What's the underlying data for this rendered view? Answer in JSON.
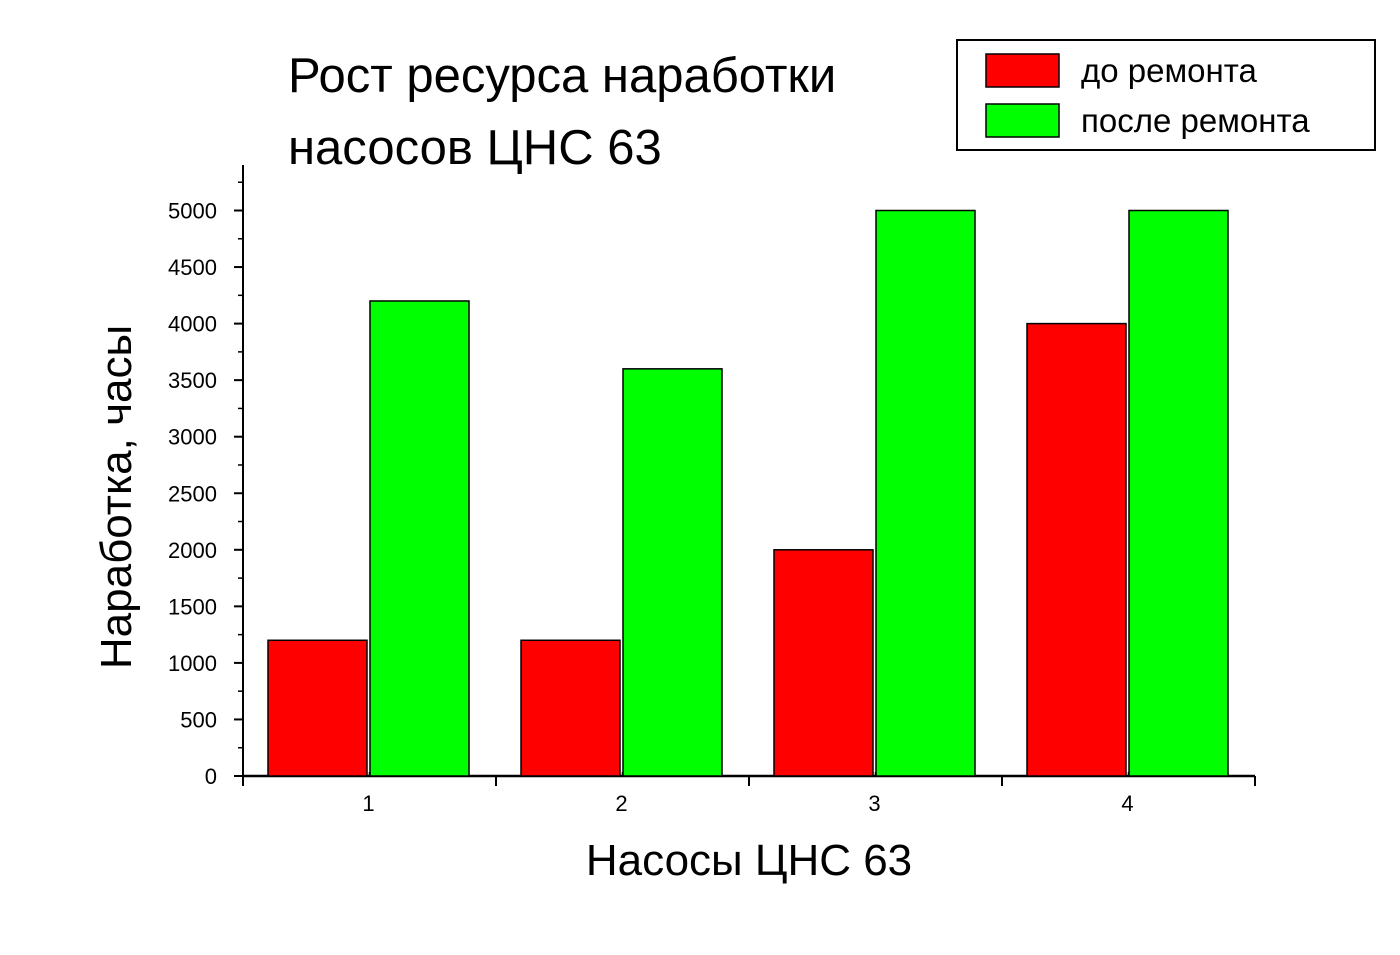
{
  "chart_data": {
    "type": "bar",
    "title_lines": [
      "Рост ресурса наработки",
      "насосов ЦНС 63"
    ],
    "xlabel": "Насосы ЦНС 63",
    "ylabel": "Наработка, часы",
    "categories": [
      "1",
      "2",
      "3",
      "4"
    ],
    "series": [
      {
        "name": "до ремонта",
        "color": "#ff0000",
        "values": [
          1200,
          1200,
          2000,
          4000
        ]
      },
      {
        "name": "после ремонта",
        "color": "#00ff00",
        "values": [
          4200,
          3600,
          5000,
          5000
        ]
      }
    ],
    "ylim": [
      0,
      5400
    ],
    "yticks": [
      0,
      500,
      1000,
      1500,
      2000,
      2500,
      3000,
      3500,
      4000,
      4500,
      5000
    ],
    "y_minor_step": 250,
    "legend_position": "top-right",
    "grid": false
  }
}
